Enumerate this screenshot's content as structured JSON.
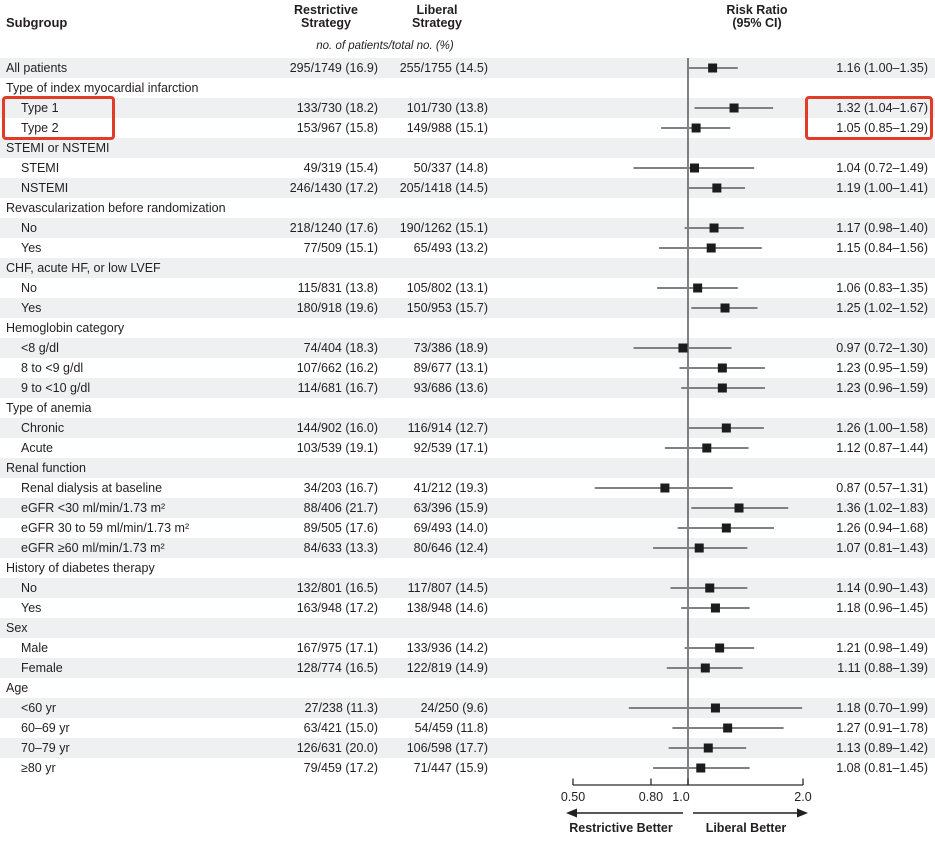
{
  "figure": {
    "columns": {
      "subgroup": "Subgroup",
      "restrictive_line1": "Restrictive",
      "restrictive_line2": "Strategy",
      "liberal_line1": "Liberal",
      "liberal_line2": "Strategy",
      "units_note": "no. of patients/total no. (%)",
      "risk_ratio_line1": "Risk Ratio",
      "risk_ratio_line2": "(95% CI)"
    }
  },
  "chart_data": {
    "type": "forest",
    "x_scale": "log",
    "xlim": [
      0.5,
      2.0
    ],
    "reference_line": 1.0,
    "x_ticks": [
      {
        "value": 0.5,
        "label": "0.50"
      },
      {
        "value": 0.8,
        "label": "0.80"
      },
      {
        "value": 1.0,
        "label": "1.0"
      },
      {
        "value": 2.0,
        "label": "2.0"
      }
    ],
    "footer_arrows": {
      "left_label": "Restrictive Better",
      "right_label": "Liberal Better"
    },
    "highlight_color": "#e23b28",
    "shade_color": "#eff0f1",
    "ci_line_color": "#7f8184",
    "marker_color": "#1c1c1c",
    "reference_line_color": "#606266",
    "axis_color": "#2b2b2b",
    "rows": [
      {
        "kind": "data",
        "indent": 0,
        "label": "All patients",
        "restrictive": "295/1749 (16.9)",
        "liberal": "255/1755 (14.5)",
        "rr": 1.16,
        "ci_low": 1.0,
        "ci_high": 1.35,
        "rr_text": "1.16 (1.00–1.35)"
      },
      {
        "kind": "section",
        "label": "Type of index myocardial infarction"
      },
      {
        "kind": "data",
        "indent": 1,
        "label": "Type 1",
        "restrictive": "133/730 (18.2)",
        "liberal": "101/730 (13.8)",
        "rr": 1.32,
        "ci_low": 1.04,
        "ci_high": 1.67,
        "rr_text": "1.32 (1.04–1.67)",
        "highlighted": true
      },
      {
        "kind": "data",
        "indent": 1,
        "label": "Type 2",
        "restrictive": "153/967 (15.8)",
        "liberal": "149/988 (15.1)",
        "rr": 1.05,
        "ci_low": 0.85,
        "ci_high": 1.29,
        "rr_text": "1.05 (0.85–1.29)",
        "highlighted": true
      },
      {
        "kind": "section",
        "label": "STEMI or NSTEMI"
      },
      {
        "kind": "data",
        "indent": 1,
        "label": "STEMI",
        "restrictive": "49/319 (15.4)",
        "liberal": "50/337 (14.8)",
        "rr": 1.04,
        "ci_low": 0.72,
        "ci_high": 1.49,
        "rr_text": "1.04 (0.72–1.49)"
      },
      {
        "kind": "data",
        "indent": 1,
        "label": "NSTEMI",
        "restrictive": "246/1430 (17.2)",
        "liberal": "205/1418 (14.5)",
        "rr": 1.19,
        "ci_low": 1.0,
        "ci_high": 1.41,
        "rr_text": "1.19 (1.00–1.41)"
      },
      {
        "kind": "section",
        "label": "Revascularization before randomization"
      },
      {
        "kind": "data",
        "indent": 1,
        "label": "No",
        "restrictive": "218/1240 (17.6)",
        "liberal": "190/1262 (15.1)",
        "rr": 1.17,
        "ci_low": 0.98,
        "ci_high": 1.4,
        "rr_text": "1.17 (0.98–1.40)"
      },
      {
        "kind": "data",
        "indent": 1,
        "label": "Yes",
        "restrictive": "77/509 (15.1)",
        "liberal": "65/493 (13.2)",
        "rr": 1.15,
        "ci_low": 0.84,
        "ci_high": 1.56,
        "rr_text": "1.15 (0.84–1.56)"
      },
      {
        "kind": "section",
        "label": "CHF, acute HF, or low LVEF"
      },
      {
        "kind": "data",
        "indent": 1,
        "label": "No",
        "restrictive": "115/831 (13.8)",
        "liberal": "105/802 (13.1)",
        "rr": 1.06,
        "ci_low": 0.83,
        "ci_high": 1.35,
        "rr_text": "1.06 (0.83–1.35)"
      },
      {
        "kind": "data",
        "indent": 1,
        "label": "Yes",
        "restrictive": "180/918 (19.6)",
        "liberal": "150/953 (15.7)",
        "rr": 1.25,
        "ci_low": 1.02,
        "ci_high": 1.52,
        "rr_text": "1.25 (1.02–1.52)"
      },
      {
        "kind": "section",
        "label": "Hemoglobin category"
      },
      {
        "kind": "data",
        "indent": 1,
        "label": "<8 g/dl",
        "restrictive": "74/404 (18.3)",
        "liberal": "73/386 (18.9)",
        "rr": 0.97,
        "ci_low": 0.72,
        "ci_high": 1.3,
        "rr_text": "0.97 (0.72–1.30)"
      },
      {
        "kind": "data",
        "indent": 1,
        "label": "8 to <9 g/dl",
        "restrictive": "107/662 (16.2)",
        "liberal": "89/677 (13.1)",
        "rr": 1.23,
        "ci_low": 0.95,
        "ci_high": 1.59,
        "rr_text": "1.23 (0.95–1.59)"
      },
      {
        "kind": "data",
        "indent": 1,
        "label": "9 to <10 g/dl",
        "restrictive": "114/681 (16.7)",
        "liberal": "93/686 (13.6)",
        "rr": 1.23,
        "ci_low": 0.96,
        "ci_high": 1.59,
        "rr_text": "1.23 (0.96–1.59)"
      },
      {
        "kind": "section",
        "label": "Type of anemia"
      },
      {
        "kind": "data",
        "indent": 1,
        "label": "Chronic",
        "restrictive": "144/902 (16.0)",
        "liberal": "116/914 (12.7)",
        "rr": 1.26,
        "ci_low": 1.0,
        "ci_high": 1.58,
        "rr_text": "1.26 (1.00–1.58)"
      },
      {
        "kind": "data",
        "indent": 1,
        "label": "Acute",
        "restrictive": "103/539 (19.1)",
        "liberal": "92/539 (17.1)",
        "rr": 1.12,
        "ci_low": 0.87,
        "ci_high": 1.44,
        "rr_text": "1.12 (0.87–1.44)"
      },
      {
        "kind": "section",
        "label": "Renal function"
      },
      {
        "kind": "data",
        "indent": 1,
        "label": "Renal dialysis at baseline",
        "restrictive": "34/203 (16.7)",
        "liberal": "41/212 (19.3)",
        "rr": 0.87,
        "ci_low": 0.57,
        "ci_high": 1.31,
        "rr_text": "0.87 (0.57–1.31)"
      },
      {
        "kind": "data",
        "indent": 1,
        "label": "eGFR <30 ml/min/1.73 m²",
        "restrictive": "88/406 (21.7)",
        "liberal": "63/396 (15.9)",
        "rr": 1.36,
        "ci_low": 1.02,
        "ci_high": 1.83,
        "rr_text": "1.36 (1.02–1.83)"
      },
      {
        "kind": "data",
        "indent": 1,
        "label": "eGFR 30 to 59 ml/min/1.73 m²",
        "restrictive": "89/505 (17.6)",
        "liberal": "69/493 (14.0)",
        "rr": 1.26,
        "ci_low": 0.94,
        "ci_high": 1.68,
        "rr_text": "1.26 (0.94–1.68)"
      },
      {
        "kind": "data",
        "indent": 1,
        "label": "eGFR ≥60 ml/min/1.73 m²",
        "restrictive": "84/633 (13.3)",
        "liberal": "80/646 (12.4)",
        "rr": 1.07,
        "ci_low": 0.81,
        "ci_high": 1.43,
        "rr_text": "1.07 (0.81–1.43)"
      },
      {
        "kind": "section",
        "label": "History of diabetes therapy"
      },
      {
        "kind": "data",
        "indent": 1,
        "label": "No",
        "restrictive": "132/801 (16.5)",
        "liberal": "117/807 (14.5)",
        "rr": 1.14,
        "ci_low": 0.9,
        "ci_high": 1.43,
        "rr_text": "1.14 (0.90–1.43)"
      },
      {
        "kind": "data",
        "indent": 1,
        "label": "Yes",
        "restrictive": "163/948 (17.2)",
        "liberal": "138/948 (14.6)",
        "rr": 1.18,
        "ci_low": 0.96,
        "ci_high": 1.45,
        "rr_text": "1.18 (0.96–1.45)"
      },
      {
        "kind": "section",
        "label": "Sex"
      },
      {
        "kind": "data",
        "indent": 1,
        "label": "Male",
        "restrictive": "167/975 (17.1)",
        "liberal": "133/936 (14.2)",
        "rr": 1.21,
        "ci_low": 0.98,
        "ci_high": 1.49,
        "rr_text": "1.21 (0.98–1.49)"
      },
      {
        "kind": "data",
        "indent": 1,
        "label": "Female",
        "restrictive": "128/774 (16.5)",
        "liberal": "122/819 (14.9)",
        "rr": 1.11,
        "ci_low": 0.88,
        "ci_high": 1.39,
        "rr_text": "1.11 (0.88–1.39)"
      },
      {
        "kind": "section",
        "label": "Age"
      },
      {
        "kind": "data",
        "indent": 1,
        "label": "<60 yr",
        "restrictive": "27/238 (11.3)",
        "liberal": "24/250 (9.6)",
        "rr": 1.18,
        "ci_low": 0.7,
        "ci_high": 1.99,
        "rr_text": "1.18 (0.70–1.99)"
      },
      {
        "kind": "data",
        "indent": 1,
        "label": "60–69 yr",
        "restrictive": "63/421 (15.0)",
        "liberal": "54/459 (11.8)",
        "rr": 1.27,
        "ci_low": 0.91,
        "ci_high": 1.78,
        "rr_text": "1.27 (0.91–1.78)"
      },
      {
        "kind": "data",
        "indent": 1,
        "label": "70–79 yr",
        "restrictive": "126/631 (20.0)",
        "liberal": "106/598 (17.7)",
        "rr": 1.13,
        "ci_low": 0.89,
        "ci_high": 1.42,
        "rr_text": "1.13 (0.89–1.42)"
      },
      {
        "kind": "data",
        "indent": 1,
        "label": "≥80 yr",
        "restrictive": "79/459 (17.2)",
        "liberal": "71/447 (15.9)",
        "rr": 1.08,
        "ci_low": 0.81,
        "ci_high": 1.45,
        "rr_text": "1.08 (0.81–1.45)"
      }
    ]
  }
}
